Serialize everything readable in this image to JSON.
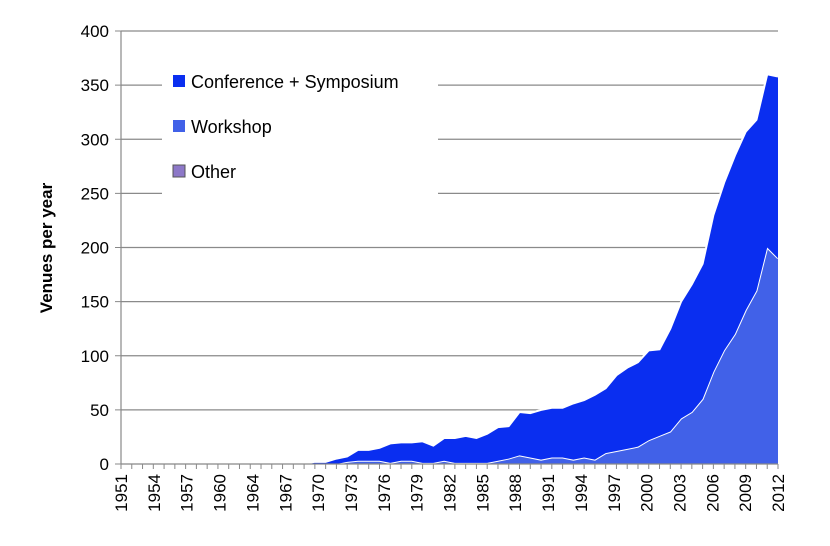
{
  "chart_data": {
    "type": "area",
    "ylabel": "Venues per year",
    "xlabel": "",
    "ylim": [
      0,
      400
    ],
    "yticks": [
      0,
      50,
      100,
      150,
      200,
      250,
      300,
      350,
      400
    ],
    "xlim": [
      1951,
      2012
    ],
    "xtick_labels": [
      "1951",
      "1954",
      "1957",
      "1960",
      "1964",
      "1967",
      "1970",
      "1973",
      "1976",
      "1979",
      "1982",
      "1985",
      "1988",
      "1991",
      "1994",
      "1997",
      "2000",
      "2003",
      "2006",
      "2009",
      "2012"
    ],
    "stacked": true,
    "grid": "horizontal",
    "legend_position": "top-left",
    "x": [
      1951,
      1952,
      1953,
      1954,
      1955,
      1956,
      1957,
      1958,
      1959,
      1960,
      1961,
      1962,
      1963,
      1964,
      1965,
      1966,
      1967,
      1968,
      1969,
      1970,
      1971,
      1972,
      1973,
      1974,
      1975,
      1976,
      1977,
      1978,
      1979,
      1980,
      1981,
      1982,
      1983,
      1984,
      1985,
      1986,
      1987,
      1988,
      1989,
      1990,
      1991,
      1992,
      1993,
      1994,
      1995,
      1996,
      1997,
      1998,
      1999,
      2000,
      2001,
      2002,
      2003,
      2004,
      2005,
      2006,
      2007,
      2008,
      2009,
      2010,
      2011,
      2012
    ],
    "series": [
      {
        "name": "Other",
        "color": "#8d78c8",
        "values": [
          0,
          0,
          0,
          0,
          0,
          0,
          0,
          0,
          0,
          0,
          0,
          0,
          0,
          0,
          0,
          0,
          0,
          0,
          0,
          0,
          0,
          0,
          0,
          0,
          0,
          0,
          0,
          0,
          0,
          0,
          0,
          0,
          0,
          0,
          0,
          0,
          0,
          0,
          0,
          0,
          0,
          0,
          0,
          0,
          0,
          0,
          0,
          0,
          0,
          0,
          0,
          0,
          0,
          0,
          0,
          0,
          0,
          0,
          0,
          0,
          0,
          0
        ]
      },
      {
        "name": "Workshop",
        "color": "#4161e8",
        "values": [
          0,
          0,
          0,
          0,
          0,
          0,
          0,
          0,
          0,
          0,
          0,
          0,
          0,
          0,
          0,
          0,
          0,
          0,
          0,
          0,
          0,
          2,
          3,
          3,
          3,
          1,
          3,
          3,
          1,
          1,
          3,
          1,
          1,
          1,
          1,
          3,
          5,
          8,
          6,
          4,
          6,
          6,
          4,
          6,
          4,
          10,
          12,
          14,
          16,
          22,
          26,
          30,
          42,
          48,
          60,
          85,
          105,
          120,
          142,
          160,
          200,
          190
        ]
      },
      {
        "name": "Conference + Symposium",
        "color": "#0a2ef0",
        "values": [
          0,
          0,
          0,
          0,
          0,
          0,
          0,
          0,
          0,
          0,
          0,
          0,
          0,
          0,
          0,
          0,
          0,
          0,
          2,
          2,
          5,
          5,
          10,
          10,
          12,
          18,
          17,
          17,
          20,
          16,
          21,
          23,
          25,
          23,
          27,
          31,
          30,
          40,
          41,
          46,
          46,
          46,
          52,
          53,
          60,
          60,
          70,
          75,
          78,
          83,
          80,
          95,
          108,
          118,
          125,
          145,
          155,
          165,
          165,
          158,
          160,
          168
        ]
      }
    ]
  }
}
